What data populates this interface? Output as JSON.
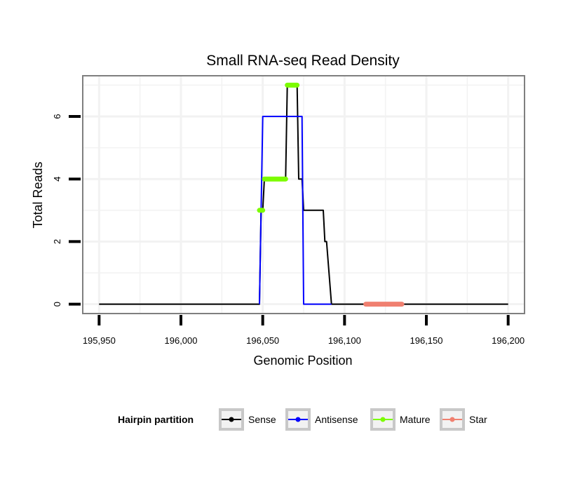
{
  "chart_data": {
    "type": "line",
    "title": "Small RNA-seq Read Density",
    "xlabel": "Genomic Position",
    "ylabel": "Total Reads",
    "xlim": [
      195940,
      196210
    ],
    "ylim": [
      -0.3,
      7.3
    ],
    "x_ticks": [
      195950,
      196000,
      196050,
      196100,
      196150,
      196200
    ],
    "x_tick_labels": [
      "195,950",
      "196,000",
      "196,050",
      "196,100",
      "196,150",
      "196,200"
    ],
    "y_ticks": [
      0,
      2,
      4,
      6
    ],
    "y_tick_labels": [
      "0",
      "2",
      "4",
      "6"
    ],
    "grid": true,
    "legend": {
      "title": "Hairpin partition",
      "position": "bottom",
      "items": [
        {
          "label": "Sense",
          "color": "#000000"
        },
        {
          "label": "Antisense",
          "color": "#0000ff"
        },
        {
          "label": "Mature",
          "color": "#7cfc00"
        },
        {
          "label": "Star",
          "color": "#f08070"
        }
      ]
    },
    "series": [
      {
        "name": "Sense",
        "color": "#000000",
        "width": 2,
        "points": [
          [
            195950,
            0
          ],
          [
            196048,
            0
          ],
          [
            196049,
            3
          ],
          [
            196050,
            3
          ],
          [
            196051,
            4
          ],
          [
            196064,
            4
          ],
          [
            196065,
            7
          ],
          [
            196071,
            7
          ],
          [
            196072,
            4
          ],
          [
            196074,
            4
          ],
          [
            196075,
            3
          ],
          [
            196087,
            3
          ],
          [
            196088,
            2
          ],
          [
            196089,
            2
          ],
          [
            196092,
            0
          ],
          [
            196200,
            0
          ]
        ]
      },
      {
        "name": "Antisense",
        "color": "#0000ff",
        "width": 2,
        "points": [
          [
            196048,
            0
          ],
          [
            196050,
            6
          ],
          [
            196074,
            6
          ],
          [
            196075,
            0
          ],
          [
            196092,
            0
          ]
        ]
      },
      {
        "name": "Mature",
        "color": "#7cfc00",
        "width": 7,
        "segments": [
          {
            "x": [
              196048,
              196050
            ],
            "y": 3
          },
          {
            "x": [
              196051,
              196064
            ],
            "y": 4
          },
          {
            "x": [
              196065,
              196071
            ],
            "y": 7
          }
        ]
      },
      {
        "name": "Star",
        "color": "#f08070",
        "width": 7,
        "segments": [
          {
            "x": [
              196113,
              196135
            ],
            "y": 0
          }
        ]
      }
    ]
  }
}
